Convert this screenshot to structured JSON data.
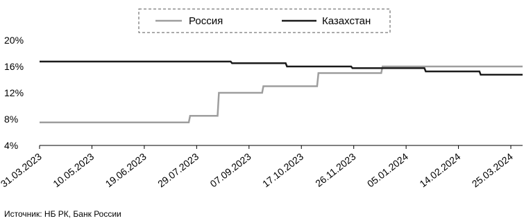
{
  "chart_data": {
    "type": "line",
    "title": "",
    "xlabel": "",
    "ylabel": "",
    "legend_position": "top-center",
    "legend_border": "dashed",
    "grid": false,
    "ylim": [
      4,
      20
    ],
    "y_ticks": [
      "4%",
      "8%",
      "12%",
      "16%",
      "20%"
    ],
    "y_tick_values": [
      4,
      8,
      12,
      16,
      20
    ],
    "x_range": [
      "2023-03-31",
      "2024-04-03"
    ],
    "x_ticks": [
      "31.03.2023",
      "10.05.2023",
      "19.06.2023",
      "29.07.2023",
      "07.09.2023",
      "17.10.2023",
      "26.11.2023",
      "05.01.2024",
      "14.02.2024",
      "25.03.2024"
    ],
    "x_tick_dates": [
      "2023-03-31",
      "2023-05-10",
      "2023-06-19",
      "2023-07-29",
      "2023-09-07",
      "2023-10-17",
      "2023-11-26",
      "2024-01-05",
      "2024-02-14",
      "2024-03-25"
    ],
    "series": [
      {
        "name": "Россия",
        "color": "#9e9e9e",
        "points": [
          [
            "2023-03-31",
            7.5
          ],
          [
            "2023-07-23",
            7.5
          ],
          [
            "2023-07-24",
            8.5
          ],
          [
            "2023-08-14",
            8.5
          ],
          [
            "2023-08-15",
            12.0
          ],
          [
            "2023-09-17",
            12.0
          ],
          [
            "2023-09-18",
            13.0
          ],
          [
            "2023-10-29",
            13.0
          ],
          [
            "2023-10-30",
            15.0
          ],
          [
            "2023-12-17",
            15.0
          ],
          [
            "2023-12-18",
            16.0
          ],
          [
            "2024-04-03",
            16.0
          ]
        ]
      },
      {
        "name": "Казахстан",
        "color": "#1a1a1a",
        "points": [
          [
            "2023-03-31",
            16.75
          ],
          [
            "2023-08-24",
            16.75
          ],
          [
            "2023-08-25",
            16.5
          ],
          [
            "2023-10-05",
            16.5
          ],
          [
            "2023-10-06",
            16.0
          ],
          [
            "2023-11-24",
            16.0
          ],
          [
            "2023-11-25",
            15.75
          ],
          [
            "2024-01-19",
            15.75
          ],
          [
            "2024-01-20",
            15.25
          ],
          [
            "2024-03-01",
            15.25
          ],
          [
            "2024-03-02",
            14.75
          ],
          [
            "2024-04-03",
            14.75
          ]
        ]
      }
    ]
  },
  "source": "Источник: НБ РК, Банк России"
}
